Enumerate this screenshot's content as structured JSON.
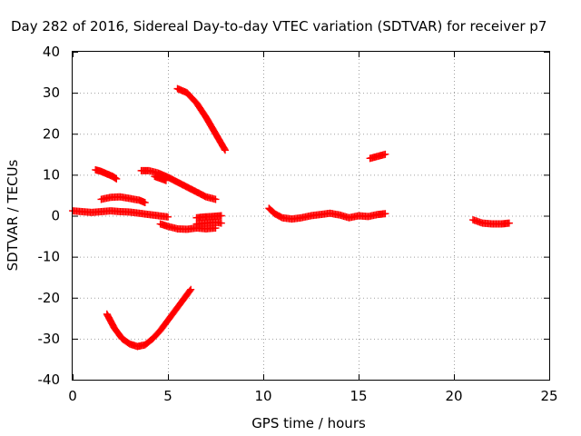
{
  "chart_data": {
    "type": "scatter",
    "title": "Day 282 of 2016, Sidereal Day-to-day VTEC variation (SDTVAR) for receiver p7",
    "xlabel": "GPS time / hours",
    "ylabel": "SDTVAR / TECUs",
    "xlim": [
      0,
      25
    ],
    "ylim": [
      -40,
      40
    ],
    "xticks": [
      0,
      5,
      10,
      15,
      20,
      25
    ],
    "yticks": [
      -40,
      -30,
      -20,
      -10,
      0,
      10,
      20,
      30,
      40
    ],
    "grid": true,
    "marker": "plus",
    "color": "#ff0000",
    "series": [
      {
        "x": [
          0.0,
          0.5,
          1.0,
          1.5,
          2.0,
          2.5,
          3.0,
          3.5,
          4.0,
          4.5,
          5.0
        ],
        "y": [
          1.2,
          1.0,
          0.8,
          1.0,
          1.2,
          1.0,
          0.9,
          0.6,
          0.3,
          0.0,
          -0.3
        ]
      },
      {
        "x": [
          1.2,
          1.5,
          1.8,
          2.1,
          2.3
        ],
        "y": [
          11.2,
          10.8,
          10.2,
          9.6,
          9.0
        ]
      },
      {
        "x": [
          1.5,
          2.0,
          2.5,
          3.0,
          3.5,
          3.8
        ],
        "y": [
          4.0,
          4.5,
          4.6,
          4.2,
          3.8,
          3.2
        ]
      },
      {
        "x": [
          3.6,
          4.0,
          4.5,
          5.0,
          5.5,
          6.0,
          6.5,
          7.0,
          7.5
        ],
        "y": [
          11.0,
          11.0,
          10.4,
          9.4,
          8.2,
          7.0,
          5.8,
          4.6,
          4.0
        ]
      },
      {
        "x": [
          4.3,
          4.6,
          4.9
        ],
        "y": [
          9.6,
          9.1,
          8.6
        ]
      },
      {
        "x": [
          4.6,
          5.0,
          5.5,
          6.0,
          6.5,
          7.0,
          7.5
        ],
        "y": [
          -2.0,
          -2.6,
          -3.2,
          -3.3,
          -3.0,
          -3.2,
          -3.0
        ]
      },
      {
        "x": [
          6.5,
          6.9,
          7.3,
          7.8
        ],
        "y": [
          -0.5,
          -0.3,
          -0.2,
          0.0
        ]
      },
      {
        "x": [
          6.5,
          7.0,
          7.5,
          7.8
        ],
        "y": [
          -2.0,
          -1.8,
          -1.6,
          -1.8
        ]
      },
      {
        "x": [
          5.5,
          6.0,
          6.5,
          7.0,
          7.5,
          8.0
        ],
        "y": [
          31.0,
          30.0,
          27.5,
          24.0,
          20.0,
          16.0
        ]
      },
      {
        "x": [
          1.8,
          2.2,
          2.6,
          3.0,
          3.4,
          3.8,
          4.2,
          4.6,
          5.0,
          5.4,
          5.8,
          6.2
        ],
        "y": [
          -24.0,
          -27.5,
          -30.0,
          -31.3,
          -31.9,
          -31.5,
          -30.0,
          -28.0,
          -25.5,
          -23.0,
          -20.5,
          -18.0
        ]
      },
      {
        "x": [
          10.3,
          10.6,
          11.0,
          11.5,
          12.0,
          12.5,
          13.0,
          13.5,
          14.0,
          14.5,
          15.0,
          15.5,
          16.0,
          16.4
        ],
        "y": [
          1.8,
          0.5,
          -0.5,
          -0.8,
          -0.5,
          0.0,
          0.3,
          0.6,
          0.2,
          -0.5,
          0.0,
          -0.2,
          0.3,
          0.5
        ]
      },
      {
        "x": [
          15.6,
          16.0,
          16.4
        ],
        "y": [
          14.0,
          14.5,
          15.0
        ]
      },
      {
        "x": [
          21.0,
          21.5,
          22.0,
          22.5,
          22.9
        ],
        "y": [
          -1.0,
          -1.8,
          -2.0,
          -2.0,
          -1.8
        ]
      }
    ]
  }
}
